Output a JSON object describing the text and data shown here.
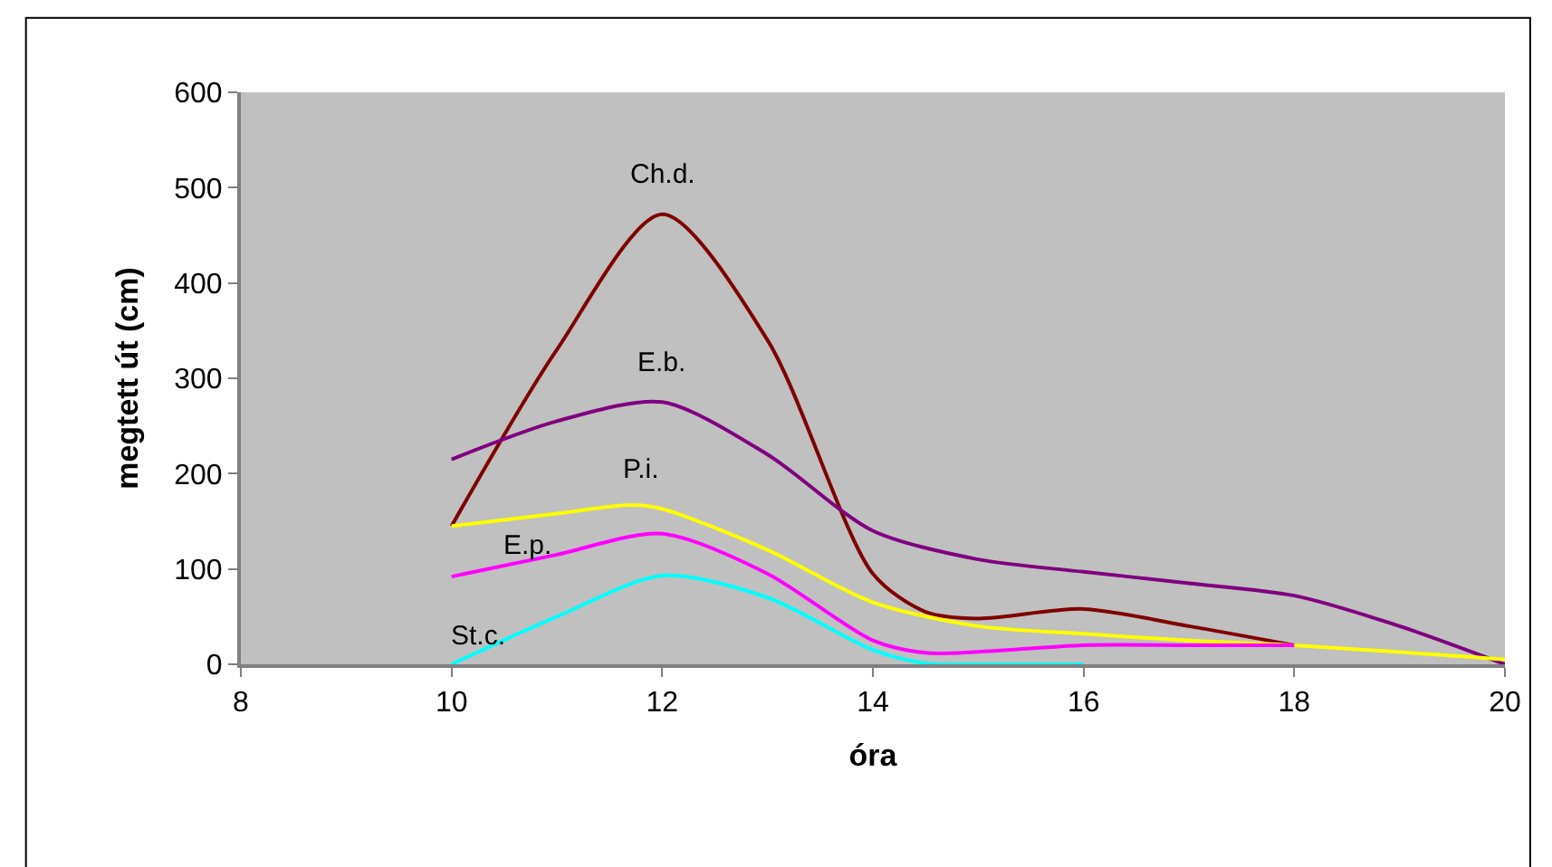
{
  "chart_data": {
    "type": "line",
    "xlabel": "óra",
    "ylabel": "megtett út (cm)",
    "xlim": [
      8,
      20
    ],
    "xticks": [
      8,
      10,
      12,
      14,
      16,
      18,
      20
    ],
    "ylim": [
      0,
      600
    ],
    "yticks": [
      0,
      100,
      200,
      300,
      400,
      500,
      600
    ],
    "grid": false,
    "legend": false,
    "marker": "none",
    "line_style": "solid",
    "series": [
      {
        "name": "Ch.d.",
        "color": "#800000",
        "x": [
          10,
          11,
          12,
          13,
          14,
          14.5,
          15,
          16,
          17,
          18
        ],
        "values": [
          145,
          330,
          472,
          340,
          95,
          55,
          48,
          58,
          40,
          20
        ]
      },
      {
        "name": "E.b.",
        "color": "#800080",
        "x": [
          10,
          11,
          12,
          13,
          14,
          15,
          16,
          17,
          18,
          19,
          20
        ],
        "values": [
          215,
          255,
          275,
          220,
          140,
          110,
          97,
          85,
          72,
          40,
          0
        ]
      },
      {
        "name": "P.i.",
        "color": "#ffff00",
        "x": [
          10,
          11,
          11.7,
          12,
          13,
          14,
          15,
          16,
          17,
          18,
          20
        ],
        "values": [
          145,
          158,
          167,
          163,
          120,
          65,
          40,
          32,
          25,
          20,
          5
        ]
      },
      {
        "name": "E.p.",
        "color": "#ff00ff",
        "x": [
          10,
          11,
          12,
          13,
          14,
          14.5,
          15,
          16,
          17,
          18
        ],
        "values": [
          92,
          115,
          137,
          95,
          25,
          12,
          13,
          20,
          20,
          20
        ]
      },
      {
        "name": "St.c.",
        "color": "#00ffff",
        "x": [
          10,
          11,
          12,
          13,
          14,
          14.5,
          15,
          16
        ],
        "values": [
          0,
          50,
          93,
          70,
          15,
          1,
          0,
          0
        ]
      }
    ]
  }
}
